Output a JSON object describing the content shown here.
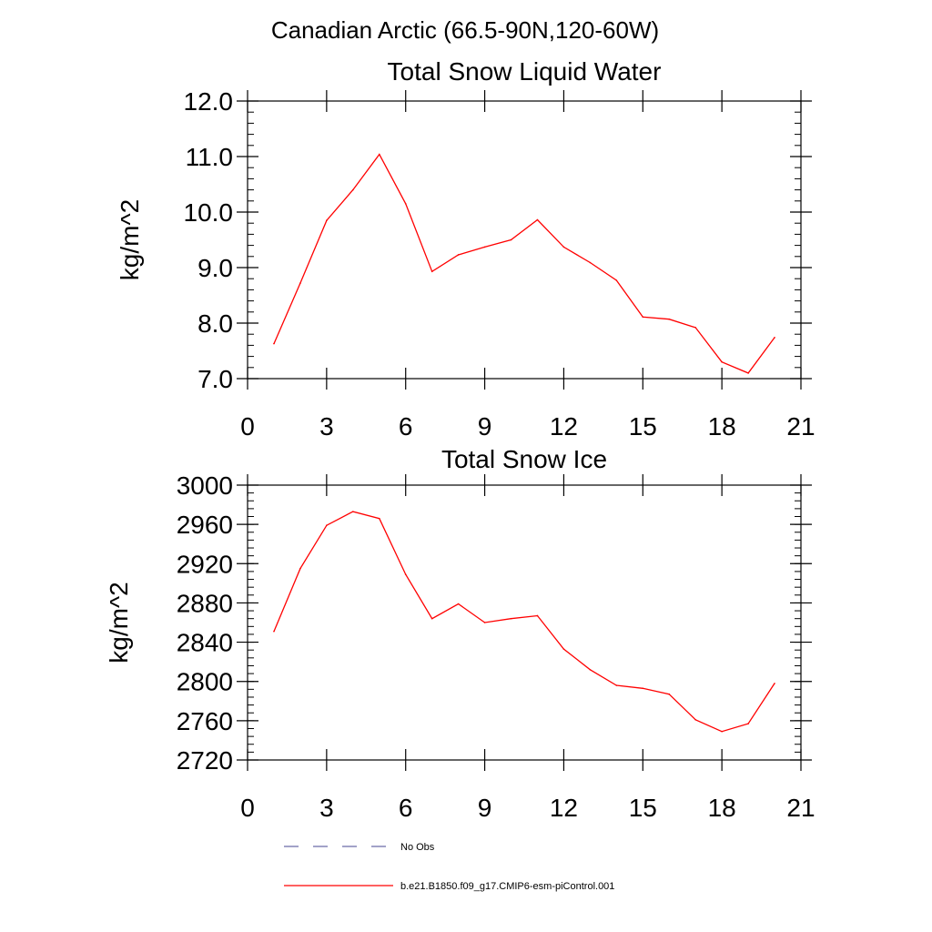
{
  "figure": {
    "region_title": "Canadian Arctic (66.5-90N,120-60W)"
  },
  "chart_data": [
    {
      "type": "line",
      "title": "Total Snow Liquid Water",
      "xlabel": "",
      "ylabel": "kg/m^2",
      "xlim": [
        0,
        21
      ],
      "ylim": [
        7.0,
        12.0
      ],
      "x_ticks": [
        0,
        3,
        6,
        9,
        12,
        15,
        18,
        21
      ],
      "x_tick_labels": [
        "0",
        "3",
        "6",
        "9",
        "12",
        "15",
        "18",
        "21"
      ],
      "y_ticks": [
        7.0,
        8.0,
        9.0,
        10.0,
        11.0,
        12.0
      ],
      "y_tick_labels": [
        "7.0",
        "8.0",
        "9.0",
        "10.0",
        "11.0",
        "12.0"
      ],
      "y_minor_step": 0.2,
      "series": [
        {
          "name": "b.e21.B1850.f09_g17.CMIP6-esm-piControl.001",
          "color": "#ff0000",
          "x": [
            1,
            2,
            3,
            4,
            5,
            6,
            7,
            8,
            9,
            10,
            11,
            12,
            13,
            14,
            15,
            16,
            17,
            18,
            19,
            20
          ],
          "values": [
            7.63,
            8.72,
            9.85,
            10.4,
            11.04,
            10.15,
            8.93,
            9.23,
            9.37,
            9.5,
            9.86,
            9.37,
            9.09,
            8.77,
            8.11,
            8.07,
            7.92,
            7.3,
            7.1,
            7.74
          ]
        }
      ]
    },
    {
      "type": "line",
      "title": "Total Snow Ice",
      "xlabel": "",
      "ylabel": "kg/m^2",
      "xlim": [
        0,
        21
      ],
      "ylim": [
        2720,
        3000
      ],
      "x_ticks": [
        0,
        3,
        6,
        9,
        12,
        15,
        18,
        21
      ],
      "x_tick_labels": [
        "0",
        "3",
        "6",
        "9",
        "12",
        "15",
        "18",
        "21"
      ],
      "y_ticks": [
        2720,
        2760,
        2800,
        2840,
        2880,
        2920,
        2960,
        3000
      ],
      "y_tick_labels": [
        "2720",
        "2760",
        "2800",
        "2840",
        "2880",
        "2920",
        "2960",
        "3000"
      ],
      "y_minor_step": 8,
      "series": [
        {
          "name": "b.e21.B1850.f09_g17.CMIP6-esm-piControl.001",
          "color": "#ff0000",
          "x": [
            1,
            2,
            3,
            4,
            5,
            6,
            7,
            8,
            9,
            10,
            11,
            12,
            13,
            14,
            15,
            16,
            17,
            18,
            19,
            20
          ],
          "values": [
            2851,
            2915,
            2959,
            2973,
            2966,
            2909,
            2864,
            2879,
            2860,
            2864,
            2867,
            2833,
            2812,
            2796,
            2793,
            2787,
            2761,
            2749,
            2757,
            2798
          ]
        }
      ]
    }
  ],
  "legend": {
    "items": [
      {
        "label": "No Obs",
        "color": "#6a6aa8",
        "style": "dashed"
      },
      {
        "label": "b.e21.B1850.f09_g17.CMIP6-esm-piControl.001",
        "color": "#ff0000",
        "style": "solid"
      }
    ]
  }
}
